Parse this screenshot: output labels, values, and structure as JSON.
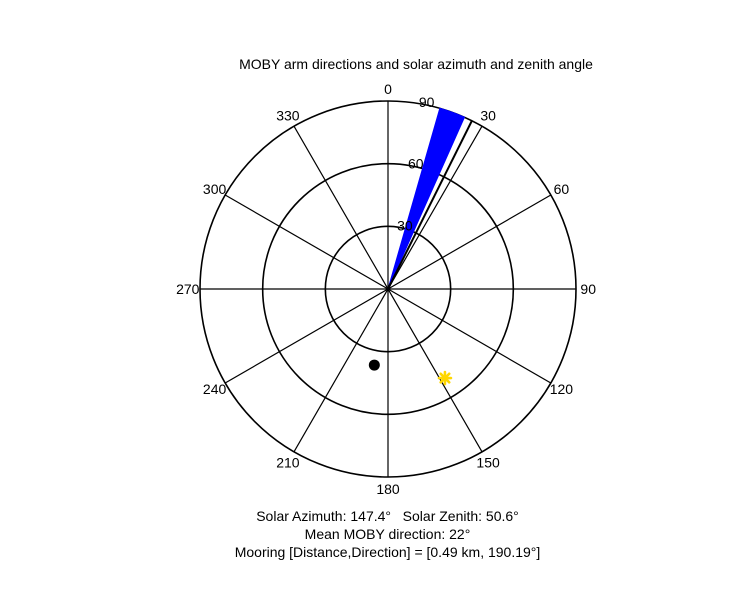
{
  "chart_data": {
    "type": "polar",
    "title": "MOBY arm directions and solar azimuth and zenith angle",
    "angle_ticks": [
      {
        "value": 0,
        "label": "0"
      },
      {
        "value": 30,
        "label": "30"
      },
      {
        "value": 60,
        "label": "60"
      },
      {
        "value": 90,
        "label": "90"
      },
      {
        "value": 120,
        "label": "120"
      },
      {
        "value": 150,
        "label": "150"
      },
      {
        "value": 180,
        "label": "180"
      },
      {
        "value": 210,
        "label": "210"
      },
      {
        "value": 240,
        "label": "240"
      },
      {
        "value": 270,
        "label": "270"
      },
      {
        "value": 300,
        "label": "300"
      },
      {
        "value": 330,
        "label": "330"
      }
    ],
    "angle_direction": "clockwise",
    "angle_zero": "top",
    "radial_ticks": [
      {
        "value": 30,
        "label": "30"
      },
      {
        "value": 60,
        "label": "60"
      },
      {
        "value": 90,
        "label": "90"
      }
    ],
    "rlim": [
      0,
      90
    ],
    "grid": true,
    "moby_arm_wedge": {
      "color": "#0000ff",
      "angle_start": 16,
      "angle_end": 24,
      "radius": 90
    },
    "arm_line": {
      "color": "#000000",
      "angle": 26.5,
      "radius": 90
    },
    "solar_position": {
      "azimuth": 147.4,
      "zenith": 50.6,
      "color": "#ffd700",
      "marker": "asterisk"
    },
    "mooring_marker": {
      "angle": 190.19,
      "radius": 37,
      "color": "#000000",
      "marker": "dot"
    }
  },
  "captions": {
    "solar": "Solar Azimuth: 147.4°   Solar Zenith: 50.6°",
    "mean_direction": "Mean MOBY direction: 22°",
    "mooring": "Mooring [Distance,Direction] = [0.49 km, 190.19°]"
  }
}
